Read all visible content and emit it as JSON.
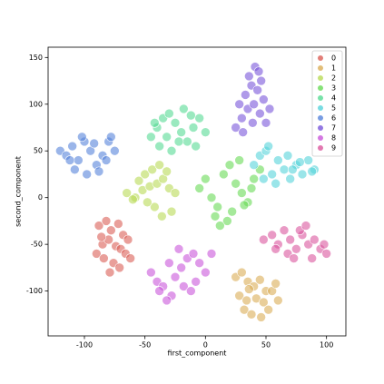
{
  "chart_data": {
    "type": "scatter",
    "xlabel": "first_component",
    "ylabel": "second_component",
    "xlim": [
      -130,
      116
    ],
    "ylim": [
      -148,
      161
    ],
    "xticks": [
      -100,
      -50,
      0,
      50,
      100
    ],
    "yticks": [
      -100,
      -50,
      0,
      50,
      100,
      150
    ],
    "legend": "upper right",
    "series": [
      {
        "name": "0",
        "color": "#db5f57",
        "x": [
          -88,
          -82,
          -78,
          -72,
          -68,
          -64,
          -85,
          -80,
          -74,
          -70,
          -66,
          -90,
          -84,
          -76,
          -71,
          -62,
          -79,
          -86
        ],
        "y": [
          -30,
          -25,
          -35,
          -28,
          -40,
          -45,
          -50,
          -45,
          -52,
          -55,
          -60,
          -60,
          -65,
          -70,
          -75,
          -65,
          -80,
          -42
        ]
      },
      {
        "name": "1",
        "color": "#dbae57",
        "x": [
          25,
          30,
          35,
          40,
          45,
          50,
          28,
          34,
          42,
          48,
          55,
          60,
          32,
          38,
          46,
          52,
          36,
          58
        ],
        "y": [
          -85,
          -80,
          -90,
          -95,
          -88,
          -100,
          -105,
          -110,
          -108,
          -112,
          -100,
          -110,
          -120,
          -125,
          -128,
          -120,
          -98,
          -92
        ]
      },
      {
        "name": "2",
        "color": "#b9db57",
        "x": [
          -65,
          -58,
          -52,
          -46,
          -40,
          -35,
          -30,
          -25,
          -60,
          -50,
          -44,
          -38,
          -32,
          -55,
          -42,
          -36,
          -28,
          -48
        ],
        "y": [
          5,
          0,
          8,
          12,
          15,
          20,
          10,
          5,
          -2,
          25,
          30,
          35,
          28,
          18,
          -10,
          -20,
          -15,
          -5
        ]
      },
      {
        "name": "3",
        "color": "#69db57",
        "x": [
          -5,
          0,
          5,
          10,
          15,
          20,
          25,
          30,
          35,
          40,
          45,
          8,
          18,
          28,
          38,
          12,
          22,
          32
        ],
        "y": [
          10,
          20,
          0,
          -10,
          25,
          35,
          15,
          5,
          -5,
          20,
          30,
          -20,
          -25,
          40,
          10,
          -30,
          -15,
          -8
        ]
      },
      {
        "name": "4",
        "color": "#57db94",
        "x": [
          -45,
          -40,
          -35,
          -30,
          -25,
          -20,
          -15,
          -10,
          -5,
          0,
          -38,
          -28,
          -18,
          -8,
          -42,
          -32,
          -22,
          -12
        ],
        "y": [
          65,
          75,
          85,
          90,
          80,
          70,
          60,
          75,
          85,
          70,
          55,
          50,
          95,
          55,
          80,
          65,
          60,
          88
        ]
      },
      {
        "name": "5",
        "color": "#57d3db",
        "x": [
          40,
          45,
          50,
          55,
          60,
          65,
          70,
          75,
          80,
          85,
          90,
          48,
          58,
          68,
          78,
          88,
          52,
          72
        ],
        "y": [
          35,
          45,
          50,
          25,
          40,
          30,
          20,
          35,
          25,
          40,
          30,
          20,
          15,
          45,
          38,
          28,
          55,
          30
        ]
      },
      {
        "name": "6",
        "color": "#5784db",
        "x": [
          -120,
          -115,
          -110,
          -105,
          -100,
          -95,
          -90,
          -85,
          -80,
          -75,
          -112,
          -102,
          -92,
          -82,
          -108,
          -98,
          -88,
          -78
        ],
        "y": [
          50,
          45,
          55,
          40,
          60,
          50,
          35,
          45,
          60,
          50,
          40,
          65,
          58,
          40,
          30,
          25,
          28,
          65
        ]
      },
      {
        "name": "7",
        "color": "#7957db",
        "x": [
          25,
          30,
          35,
          40,
          45,
          50,
          28,
          33,
          38,
          43,
          48,
          53,
          36,
          41,
          46,
          31,
          39,
          44
        ],
        "y": [
          75,
          85,
          95,
          100,
          90,
          80,
          100,
          110,
          120,
          115,
          105,
          95,
          130,
          140,
          125,
          70,
          80,
          135
        ]
      },
      {
        "name": "8",
        "color": "#c957db",
        "x": [
          -45,
          -40,
          -35,
          -30,
          -25,
          -20,
          -15,
          -10,
          -5,
          0,
          -38,
          -28,
          -18,
          -8,
          -32,
          -22,
          -12,
          5
        ],
        "y": [
          -80,
          -90,
          -95,
          -70,
          -85,
          -75,
          -65,
          -60,
          -70,
          -80,
          -100,
          -105,
          -95,
          -90,
          -110,
          -55,
          -100,
          -60
        ]
      },
      {
        "name": "9",
        "color": "#db579e",
        "x": [
          48,
          55,
          60,
          65,
          70,
          75,
          80,
          85,
          90,
          95,
          100,
          58,
          68,
          78,
          88,
          98,
          73,
          83
        ],
        "y": [
          -45,
          -40,
          -50,
          -35,
          -45,
          -55,
          -40,
          -50,
          -45,
          -55,
          -60,
          -55,
          -60,
          -35,
          -65,
          -50,
          -65,
          -30
        ]
      }
    ]
  }
}
